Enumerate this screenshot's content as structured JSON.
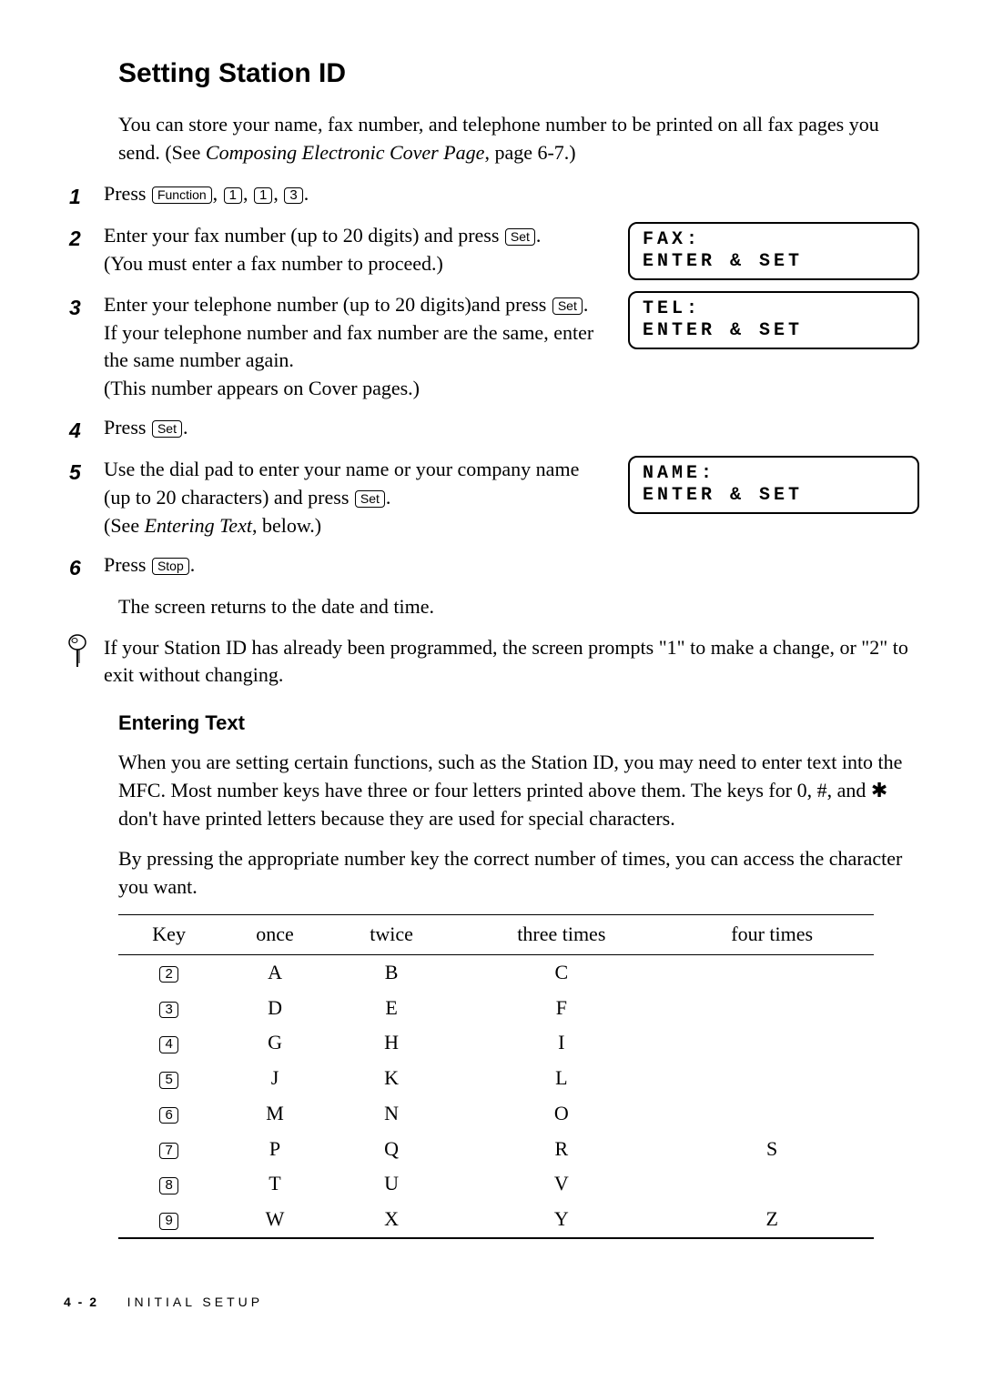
{
  "heading": "Setting Station ID",
  "intro": {
    "line1": "You can store your name, fax number, and telephone number to be printed on all fax pages you send. (See ",
    "em": "Composing Electronic Cover Page",
    "line2": ", page 6-7.)"
  },
  "keys": {
    "function": "Function",
    "set": "Set",
    "stop": "Stop",
    "k1": "1",
    "k3": "3"
  },
  "steps": [
    {
      "num": "1",
      "pre": "Press ",
      "keys_seq": [
        "Function",
        "1",
        "1",
        "3"
      ],
      "post": "."
    },
    {
      "num": "2",
      "text_a": "Enter your fax number (up to 20 digits) and press ",
      "key": "Set",
      "text_b": ".",
      "tail": "(You must enter a fax number to proceed.)",
      "display": "FAX:\nENTER & SET"
    },
    {
      "num": "3",
      "text_a": "Enter your telephone number (up to 20 digits)and press ",
      "key": "Set",
      "text_b": ". If your telephone number and fax number are the same, enter the same number again.",
      "tail": "(This number appears on Cover pages.)",
      "display": "TEL:\nENTER & SET"
    },
    {
      "num": "4",
      "text_a": "Press ",
      "key": "Set",
      "text_b": "."
    },
    {
      "num": "5",
      "text_a": "Use the dial pad to enter your name or your company name (up to 20 characters) and press ",
      "key": "Set",
      "text_b": ".",
      "tail_pre": "(See ",
      "tail_em": "Entering Text",
      "tail_post": ", below.)",
      "display": "NAME:\nENTER & SET"
    },
    {
      "num": "6",
      "text_a": "Press ",
      "key": "Stop",
      "text_b": "."
    }
  ],
  "after_steps": "The screen returns to the date and time.",
  "note": "If your Station ID has already been programmed, the screen prompts \"1\" to make a change, or \"2\" to exit without changing.",
  "subheading": "Entering Text",
  "et_para1_a": "When you are setting certain functions, such as the Station ID, you may need to enter text into the MFC. Most number keys have three or four letters printed above them. The keys for 0, #, and ",
  "et_star": "✱",
  "et_para1_b": " don't have printed letters because they are used for special characters.",
  "et_para2": "By pressing the appropriate number key the correct number of times, you can access the character you want.",
  "table": {
    "columns": [
      "Key",
      "once",
      "twice",
      "three times",
      "four times"
    ],
    "rows": [
      [
        "2",
        "A",
        "B",
        "C",
        ""
      ],
      [
        "3",
        "D",
        "E",
        "F",
        ""
      ],
      [
        "4",
        "G",
        "H",
        "I",
        ""
      ],
      [
        "5",
        "J",
        "K",
        "L",
        ""
      ],
      [
        "6",
        "M",
        "N",
        "O",
        ""
      ],
      [
        "7",
        "P",
        "Q",
        "R",
        "S"
      ],
      [
        "8",
        "T",
        "U",
        "V",
        ""
      ],
      [
        "9",
        "W",
        "X",
        "Y",
        "Z"
      ]
    ]
  },
  "footer": {
    "page": "4 - 2",
    "section": "INITIAL SETUP"
  }
}
